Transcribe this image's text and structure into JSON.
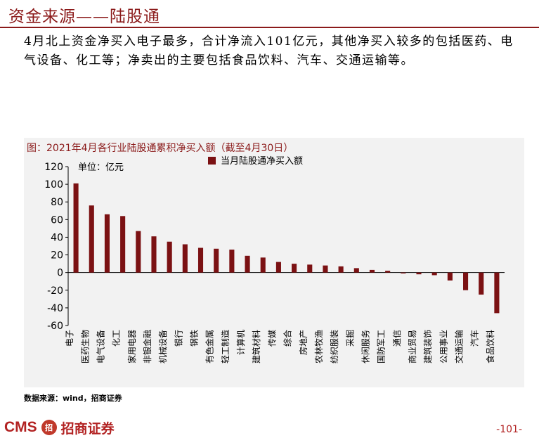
{
  "page": {
    "title": "资金来源——陆股通",
    "summary": "4月北上资金净买入电子最多，合计净流入101亿元，其他净买入较多的包括医药、电气设备、化工等；净卖出的主要包括食品饮料、汽车、交通运输等。",
    "chart_caption": "图：2021年4月各行业陆股通累积净买入额（截至4月30日）",
    "source": "数据来源：wind，招商证券",
    "logo_cms": "CMS",
    "logo_mark": "招",
    "logo_text": "招商证券",
    "page_number": "-101-"
  },
  "chart_data": {
    "type": "bar",
    "unit_label": "单位：亿元",
    "legend": "当月陆股通净买入额",
    "legend_position": "top-left",
    "bar_color": "#7b1113",
    "grid": false,
    "ylim": [
      -60,
      120
    ],
    "yticks": [
      -60,
      -40,
      -20,
      0,
      20,
      40,
      60,
      80,
      100,
      120
    ],
    "categories": [
      "电子",
      "医药生物",
      "电气设备",
      "化工",
      "家用电器",
      "非银金融",
      "机械设备",
      "银行",
      "钢铁",
      "有色金属",
      "轻工制造",
      "计算机",
      "建筑材料",
      "传媒",
      "综合",
      "房地产",
      "农林牧渔",
      "纺织服装",
      "采掘",
      "休闲服务",
      "国防军工",
      "通信",
      "商业贸易",
      "建筑装饰",
      "公用事业",
      "交通运输",
      "汽车",
      "食品饮料"
    ],
    "values": [
      101,
      76,
      66,
      64,
      47,
      41,
      35,
      32,
      28,
      27,
      26,
      19,
      17,
      12,
      10,
      9,
      8,
      7,
      5,
      3,
      2,
      -1,
      -2,
      -3,
      -9,
      -20,
      -25,
      -46
    ]
  }
}
